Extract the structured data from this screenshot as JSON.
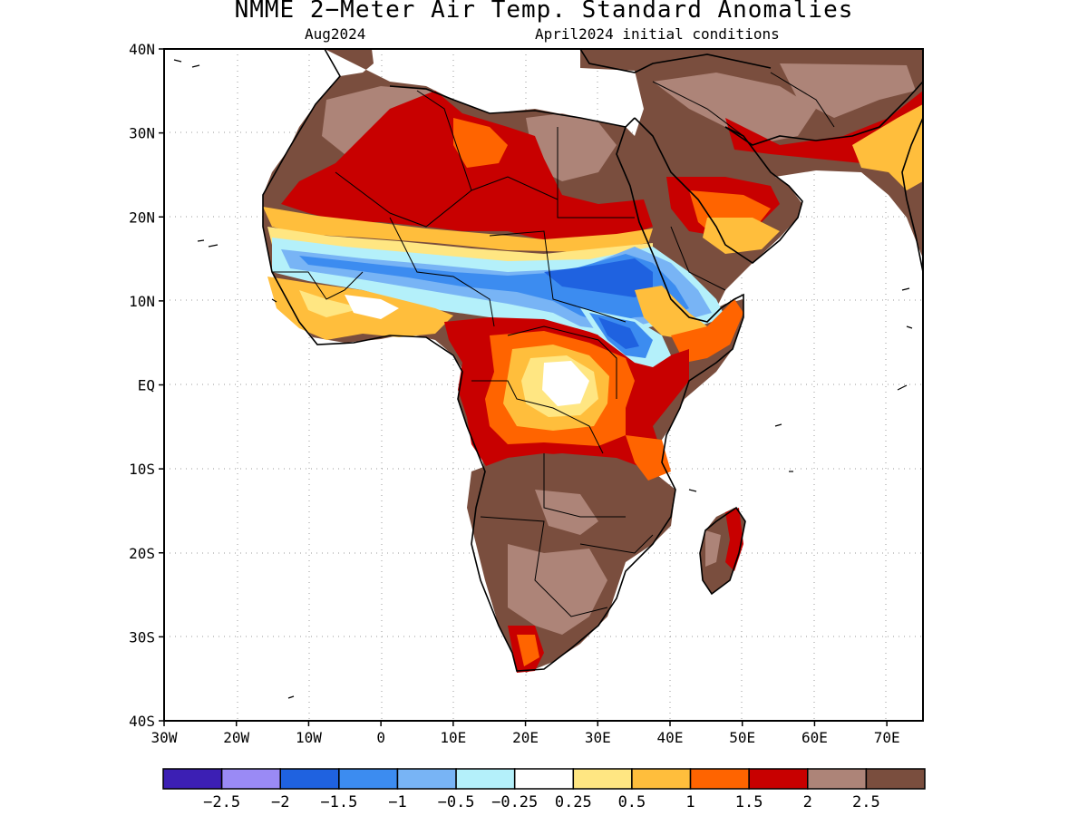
{
  "title": "NMME 2−Meter Air Temp. Standard Anomalies",
  "valid_month": "Aug2024",
  "init_conditions": "April2024 initial conditions",
  "lat_ticks": [
    "40N",
    "30N",
    "20N",
    "10N",
    "EQ",
    "10S",
    "20S",
    "30S",
    "40S"
  ],
  "lon_ticks": [
    "30W",
    "20W",
    "10W",
    "0",
    "10E",
    "20E",
    "30E",
    "40E",
    "50E",
    "60E",
    "70E"
  ],
  "colorbar": {
    "colors": [
      "#3c1fb4",
      "#9a8af5",
      "#1f62e0",
      "#3c8cf0",
      "#78b4f5",
      "#b4f0fa",
      "#ffffff",
      "#ffe682",
      "#ffbe3c",
      "#ff6400",
      "#c80000",
      "#ad8478",
      "#7a4e3e"
    ],
    "labels": [
      "−2.5",
      "−2",
      "−1.5",
      "−1",
      "−0.5",
      "−0.25",
      "0.25",
      "0.5",
      "1",
      "1.5",
      "2",
      "2.5"
    ]
  }
}
